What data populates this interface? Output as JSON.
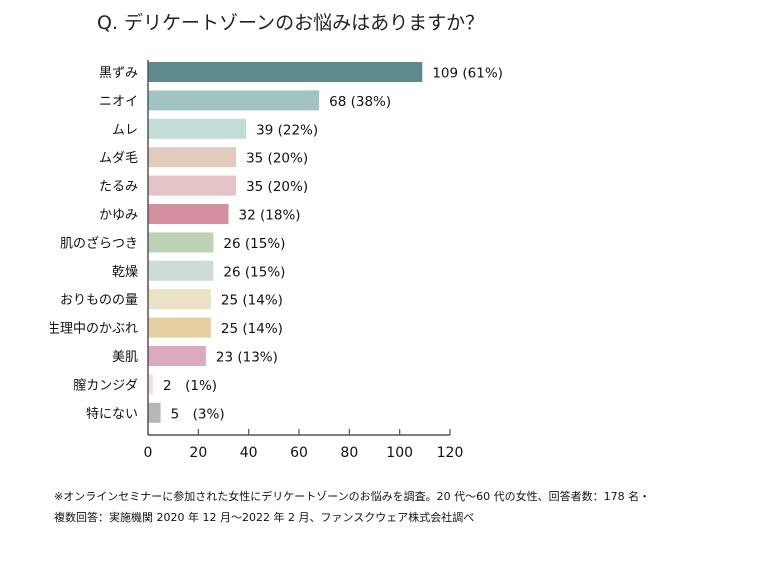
{
  "title": "Q. デリケートゾーンのお悩みはありますか？",
  "chart_data": {
    "type": "bar",
    "orientation": "horizontal",
    "categories": [
      "黒ずみ",
      "ニオイ",
      "ムレ",
      "ムダ毛",
      "たるみ",
      "かゆみ",
      "肌のざらつき",
      "乾燥",
      "おりものの量",
      "生理中のかぶれ",
      "美肌",
      "膣カンジダ",
      "特にない"
    ],
    "values": [
      109,
      68,
      39,
      35,
      35,
      32,
      26,
      26,
      25,
      25,
      23,
      2,
      5
    ],
    "data_labels": [
      "109 (61%)",
      "68 (38%)",
      "39 (22%)",
      "35 (20%)",
      "35 (20%)",
      "32 (18%)",
      "26 (15%)",
      "26 (15%)",
      "25 (14%)",
      "25 (14%)",
      "23 (13%)",
      "2　(1%)",
      "5　(3%)"
    ],
    "colors": [
      "#5f8a8c",
      "#a0c4c4",
      "#c2dcd8",
      "#e2cbbd",
      "#e6c3c6",
      "#d48fa0",
      "#bdd1b7",
      "#cddcd5",
      "#ebe2c6",
      "#e6cfa0",
      "#dcaabf",
      "#f4e0e3",
      "#b7b7b7"
    ],
    "xlim": [
      0,
      120
    ],
    "xticks": [
      0,
      20,
      40,
      60,
      80,
      100,
      120
    ],
    "grid": false,
    "title": "Q. デリケートゾーンのお悩みはありますか？",
    "xlabel": "",
    "ylabel": ""
  },
  "note": {
    "line1": "※オンラインセミナーに参加された女性にデリケートゾーンのお悩みを調査。20 代〜60 代の女性、回答者数：178 名・",
    "line2": "複数回答：実施機関 2020 年 12 月〜2022 年 2 月、ファンスクウェア株式会社調べ"
  }
}
